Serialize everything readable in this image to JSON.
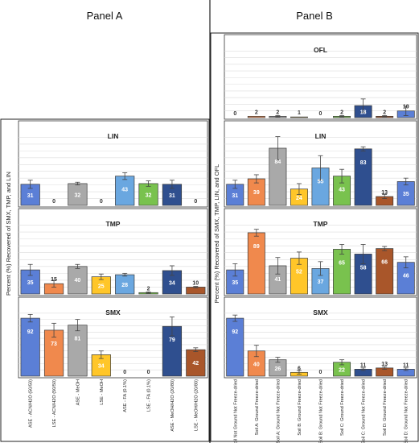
{
  "panel_titles": {
    "a": "Panel A",
    "b": "Panel B"
  },
  "ylabels": {
    "a": "Percent (%) Recovered of SMX, TMP, and LIN",
    "b": "Percent (%) Recovered of SMX, TMP, LIN, and OFL"
  },
  "colors": [
    "#5b7fd6",
    "#f0894d",
    "#a9a9a9",
    "#ffc629",
    "#6aa7e0",
    "#79c24e",
    "#2f4f8f",
    "#a9562a"
  ],
  "chart_data": [
    {
      "panel": "A",
      "type": "bar",
      "title": "LIN",
      "categories": [
        "ASE - ACN/H2O (50/50)",
        "LSE - ACN/H2O (50/50)",
        "ASE - MeOH",
        "LSE - MeOH",
        "ASE - FA (0.1%)",
        "LSE - FA (0.1%)",
        "ASE - MeOH/H2O (20/80)",
        "LSE - MeOH/H2O (20/80)"
      ],
      "values": [
        31,
        0,
        32,
        0,
        43,
        32,
        31,
        0
      ],
      "errors": [
        6,
        0,
        2,
        0,
        5,
        4,
        6,
        0
      ],
      "ylim": [
        0,
        110
      ]
    },
    {
      "panel": "A",
      "type": "bar",
      "title": "TMP",
      "categories": [
        "ASE - ACN/H2O (50/50)",
        "LSE - ACN/H2O (50/50)",
        "ASE - MeOH",
        "LSE - MeOH",
        "ASE - FA (0.1%)",
        "LSE - FA (0.1%)",
        "ASE - MeOH/H2O (20/80)",
        "LSE - MeOH/H2O (20/80)"
      ],
      "values": [
        35,
        15,
        40,
        25,
        28,
        2,
        34,
        10
      ],
      "errors": [
        8,
        5,
        3,
        4,
        2,
        1,
        7,
        1
      ],
      "ylim": [
        0,
        110
      ]
    },
    {
      "panel": "A",
      "type": "bar",
      "title": "SMX",
      "categories": [
        "ASE - ACN/H2O (50/50)",
        "LSE - ACN/H2O (50/50)",
        "ASE - MeOH",
        "LSE - MeOH",
        "ASE - FA (0.1%)",
        "LSE - FA (0.1%)",
        "ASE - MeOH/H2O (20/80)",
        "LSE - MeOH/H2O (20/80)"
      ],
      "values": [
        92,
        73,
        81,
        34,
        0,
        0,
        79,
        42
      ],
      "errors": [
        6,
        11,
        9,
        6,
        0,
        0,
        15,
        3
      ],
      "ylim": [
        0,
        110
      ]
    },
    {
      "panel": "B",
      "type": "bar",
      "title": "OFL",
      "categories": [
        "BulkSoil Not Ground Not Freeze-dried",
        "Soil A: Ground Freeze-dried",
        "Soil A: Ground Not Freeze-dried",
        "Soil B: Ground Freeze-dried",
        "Soil B: Ground Not Freeze-dried",
        "Soil C: Ground Freeze-dried",
        "Soil C: Ground Not Freeze-dried",
        "Soil D: Ground Freeze-dried",
        "Soil D: Ground Not Freeze-dried"
      ],
      "values": [
        0,
        2,
        2,
        1,
        0,
        2,
        18,
        2,
        10
      ],
      "errors": [
        0,
        0,
        1,
        0,
        0,
        1,
        10,
        1,
        7
      ],
      "ylim": [
        0,
        110
      ]
    },
    {
      "panel": "B",
      "type": "bar",
      "title": "LIN",
      "categories": [
        "BulkSoil Not Ground Not Freeze-dried",
        "Soil A: Ground Freeze-dried",
        "Soil A: Ground Not Freeze-dried",
        "Soil B: Ground Freeze-dried",
        "Soil B: Ground Not Freeze-dried",
        "Soil C: Ground Freeze-dried",
        "Soil C: Ground Not Freeze-dried",
        "Soil D: Ground Freeze-dried",
        "Soil D: Ground Not Freeze-dried"
      ],
      "values": [
        31,
        39,
        84,
        24,
        55,
        43,
        83,
        13,
        35
      ],
      "errors": [
        6,
        6,
        17,
        8,
        18,
        10,
        3,
        3,
        5
      ],
      "ylim": [
        0,
        110
      ]
    },
    {
      "panel": "B",
      "type": "bar",
      "title": "TMP",
      "categories": [
        "BulkSoil Not Ground Not Freeze-dried",
        "Soil A: Ground Freeze-dried",
        "Soil A: Ground Not Freeze-dried",
        "Soil B: Ground Freeze-dried",
        "Soil B: Ground Not Freeze-dried",
        "Soil C: Ground Freeze-dried",
        "Soil C: Ground Not Freeze-dried",
        "Soil D: Ground Freeze-dried",
        "Soil D: Ground Not Freeze-dried"
      ],
      "values": [
        35,
        89,
        41,
        52,
        37,
        65,
        58,
        66,
        46
      ],
      "errors": [
        9,
        5,
        12,
        9,
        10,
        7,
        14,
        3,
        8
      ],
      "ylim": [
        0,
        110
      ]
    },
    {
      "panel": "B",
      "type": "bar",
      "title": "SMX",
      "categories": [
        "BulkSoil Not Ground Not Freeze-dried",
        "Soil A: Ground Freeze-dried",
        "Soil A: Ground Not Freeze-dried",
        "Soil B: Ground Freeze-dried",
        "Soil B: Ground Not Freeze-dried",
        "Soil C: Ground Freeze-dried",
        "Soil C: Ground Not Freeze-dried",
        "Soil D: Ground Freeze-dried",
        "Soil D: Ground Not Freeze-dried"
      ],
      "values": [
        92,
        40,
        26,
        6,
        0,
        22,
        11,
        13,
        11
      ],
      "errors": [
        5,
        9,
        4,
        3,
        0,
        4,
        2,
        2,
        2
      ],
      "ylim": [
        0,
        110
      ]
    }
  ]
}
